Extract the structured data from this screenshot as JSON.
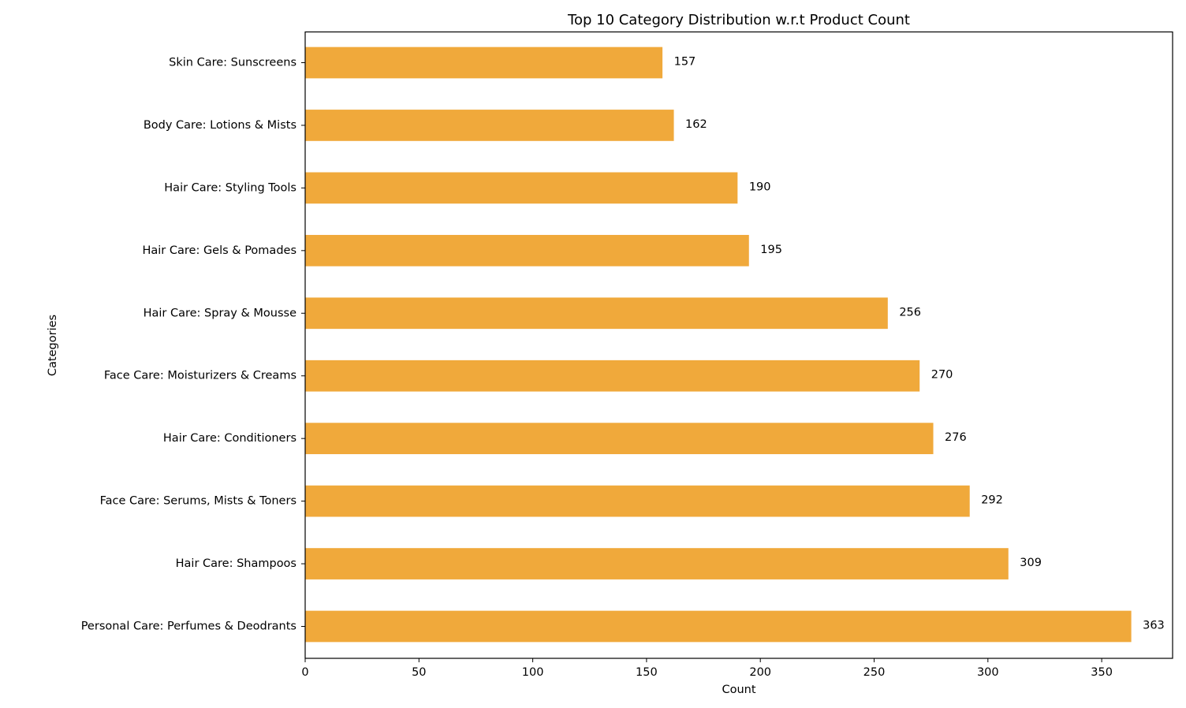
{
  "chart_data": {
    "type": "bar",
    "orientation": "horizontal",
    "title": "Top 10 Category Distribution w.r.t Product Count",
    "xlabel": "Count",
    "ylabel": "Categories",
    "categories": [
      "Skin Care: Sunscreens",
      "Body Care: Lotions & Mists",
      "Hair Care: Styling Tools",
      "Hair Care: Gels & Pomades",
      "Hair Care: Spray & Mousse",
      "Face Care: Moisturizers & Creams ",
      "Hair Care: Conditioners",
      "Face Care: Serums, Mists & Toners",
      "Hair Care: Shampoos",
      "Personal Care: Perfumes & Deodrants"
    ],
    "values": [
      157,
      162,
      190,
      195,
      256,
      270,
      276,
      292,
      309,
      363
    ],
    "data_labels": [
      "157",
      "162",
      "190",
      "195",
      "256",
      "270",
      "276",
      "292",
      "309",
      "363"
    ],
    "xticks": [
      0,
      50,
      100,
      150,
      200,
      250,
      300,
      350
    ],
    "xtick_labels": [
      "0",
      "50",
      "100",
      "150",
      "200",
      "250",
      "300",
      "350"
    ],
    "xlim": [
      0,
      381.15
    ],
    "grid": false,
    "bar_color": "#f0a93b"
  }
}
